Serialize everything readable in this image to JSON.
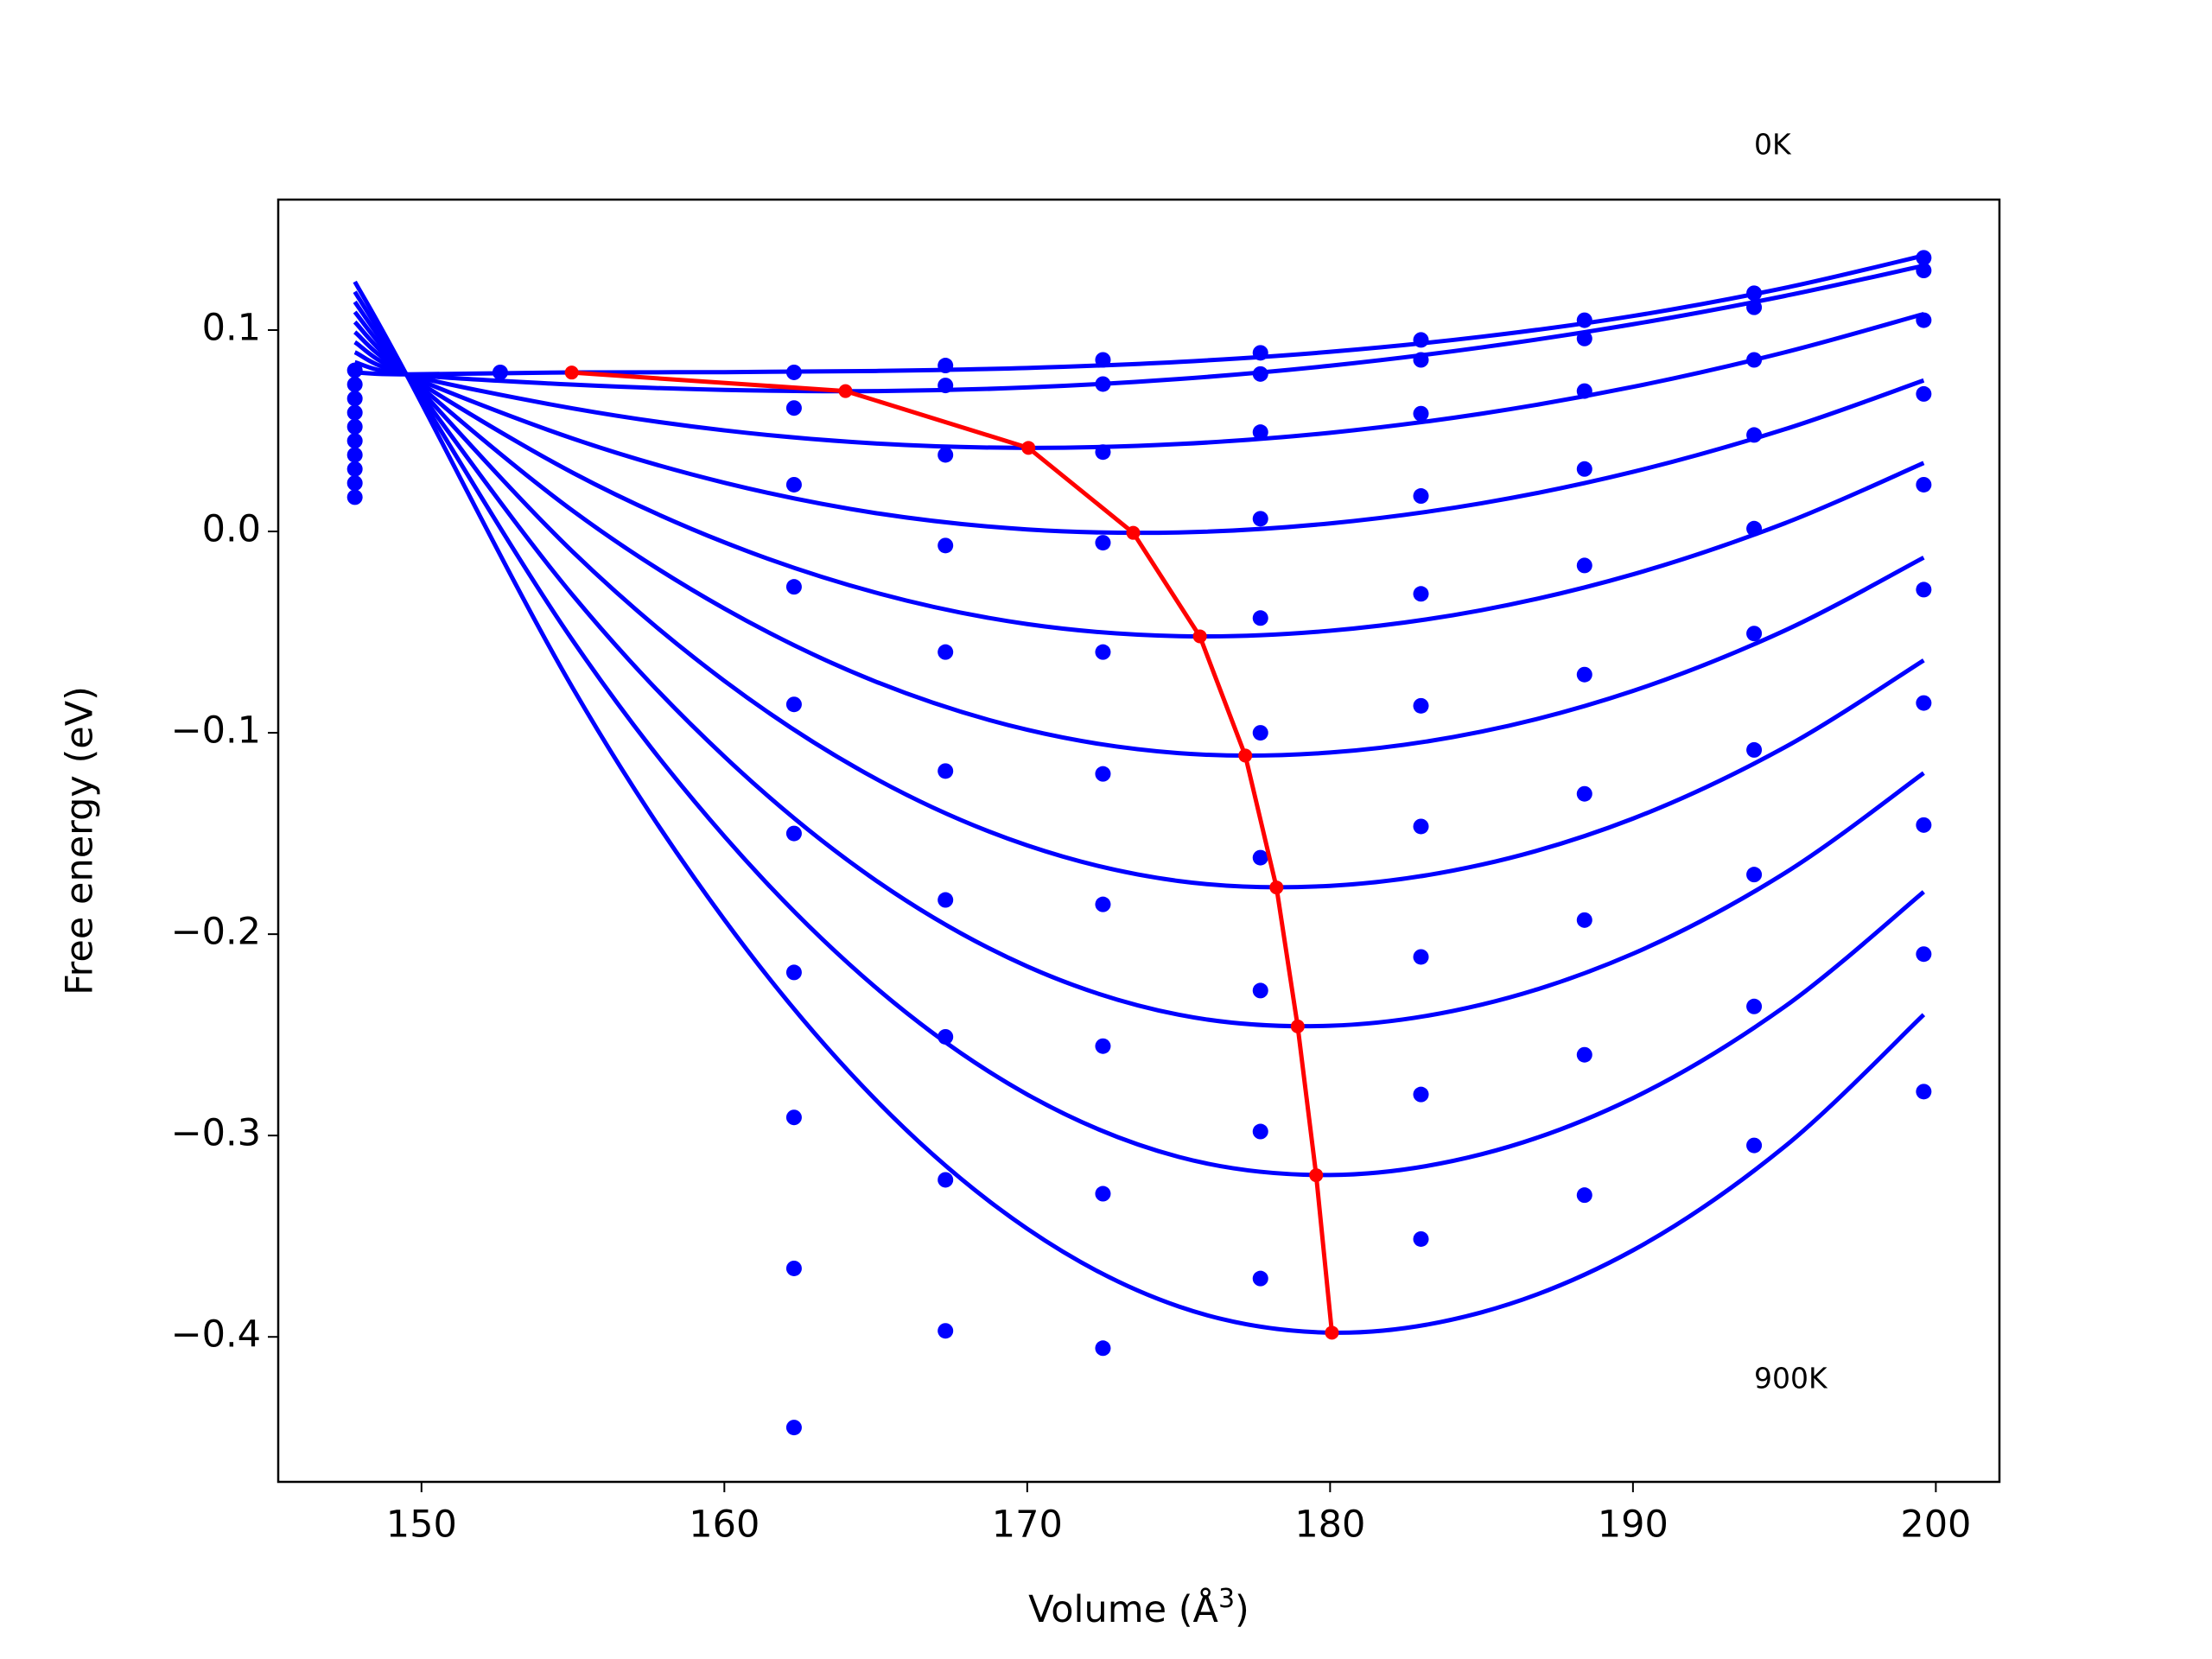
{
  "chart_data": {
    "type": "line",
    "xlabel": {
      "text": "Volume (Å",
      "sup": "3",
      "end": ")"
    },
    "ylabel": "Free energy (eV)",
    "annotations": [
      "0K",
      "900K"
    ],
    "xlim": [
      145.27,
      202.1
    ],
    "ylim": [
      -0.472,
      0.1648
    ],
    "xticks": [
      150,
      160,
      170,
      180,
      190,
      200
    ],
    "yticks": [
      {
        "value": -0.4,
        "label": "−0.4"
      },
      {
        "value": -0.3,
        "label": "−0.3"
      },
      {
        "value": -0.2,
        "label": "−0.2"
      },
      {
        "value": -0.1,
        "label": "−0.1"
      },
      {
        "value": 0,
        "label": "0.0"
      },
      0.1
    ],
    "x": [
      147.8,
      149.5,
      155,
      160,
      165,
      170,
      175,
      180,
      185,
      190,
      195,
      199.6
    ],
    "series": [
      {
        "color": "#0000ff",
        "values": [
          0.079,
          0.078,
          0.079,
          0.0791,
          0.0797,
          0.0812,
          0.0842,
          0.0892,
          0.0967,
          0.107,
          0.1209,
          0.137
        ]
      },
      {
        "color": "#0000ff",
        "values": [
          0.084,
          0.078,
          0.0729,
          0.0703,
          0.0697,
          0.0715,
          0.0757,
          0.0823,
          0.0914,
          0.1029,
          0.1169,
          0.132
        ]
      },
      {
        "color": "#0000ff",
        "values": [
          0.089,
          0.078,
          0.0611,
          0.0502,
          0.0437,
          0.0415,
          0.0434,
          0.049,
          0.0585,
          0.0718,
          0.0889,
          0.108
        ]
      },
      {
        "color": "#0000ff",
        "values": [
          0.094,
          0.078,
          0.0461,
          0.0242,
          0.0091,
          0.001,
          -0.0005,
          0.004,
          0.014,
          0.0296,
          0.0507,
          0.075
        ]
      },
      {
        "color": "#0000ff",
        "values": [
          0.099,
          0.078,
          0.0291,
          -0.0054,
          -0.0304,
          -0.046,
          -0.052,
          -0.0493,
          -0.0391,
          -0.0213,
          0.004,
          0.034
        ]
      },
      {
        "color": "#0000ff",
        "values": [
          0.104,
          0.078,
          0.0102,
          -0.0383,
          -0.0746,
          -0.0985,
          -0.1101,
          -0.1098,
          -0.0994,
          -0.0792,
          -0.0493,
          -0.013
        ]
      },
      {
        "color": "#0000ff",
        "values": [
          0.109,
          0.078,
          -0.0102,
          -0.0742,
          -0.1228,
          -0.1559,
          -0.1736,
          -0.176,
          -0.1655,
          -0.1426,
          -0.1073,
          -0.064
        ]
      },
      {
        "color": "#0000ff",
        "values": [
          0.114,
          0.078,
          -0.0318,
          -0.1118,
          -0.1733,
          -0.216,
          -0.24,
          -0.2455,
          -0.235,
          -0.2097,
          -0.1698,
          -0.12
        ]
      },
      {
        "color": "#0000ff",
        "values": [
          0.119,
          0.078,
          -0.0543,
          -0.1514,
          -0.2265,
          -0.2796,
          -0.3106,
          -0.3196,
          -0.3093,
          -0.2814,
          -0.2361,
          -0.179
        ]
      },
      {
        "color": "#0000ff",
        "values": [
          0.124,
          0.078,
          -0.0779,
          -0.1928,
          -0.2823,
          -0.3463,
          -0.3849,
          -0.3979,
          -0.3878,
          -0.357,
          -0.3056,
          -0.24
        ]
      }
    ],
    "minima": {
      "color": "#ff0000",
      "x": [
        154.96,
        164.0,
        170.04,
        173.5,
        175.7,
        177.2,
        178.23,
        178.93,
        179.54,
        180.06
      ],
      "values": [
        0.0789,
        0.0697,
        0.0415,
        -0.0007,
        -0.0521,
        -0.1113,
        -0.1768,
        -0.2458,
        -0.3197,
        -0.3979
      ]
    },
    "points": {
      "color": "#0000ff",
      "x": [
        147.8,
        147.8,
        147.8,
        147.8,
        147.8,
        147.8,
        147.8,
        147.8,
        147.8,
        147.8,
        152.6,
        162.3,
        162.3,
        162.3,
        162.3,
        162.3,
        162.3,
        162.3,
        162.3,
        162.3,
        162.3,
        167.3,
        167.3,
        167.3,
        167.3,
        167.3,
        167.3,
        167.3,
        167.3,
        167.3,
        167.3,
        172.5,
        172.5,
        172.5,
        172.5,
        172.5,
        172.5,
        172.5,
        172.5,
        172.5,
        172.5,
        177.7,
        177.7,
        177.7,
        177.7,
        177.7,
        177.7,
        177.7,
        177.7,
        177.7,
        177.7,
        183,
        183,
        183,
        183,
        183,
        183,
        183,
        183,
        183,
        183,
        188.4,
        188.4,
        188.4,
        188.4,
        188.4,
        188.4,
        188.4,
        188.4,
        188.4,
        188.4,
        194,
        194,
        194,
        194,
        194,
        194,
        194,
        194,
        194,
        194,
        199.6,
        199.6,
        199.6,
        199.6,
        199.6,
        199.6,
        199.6,
        199.6,
        199.6,
        199.6
      ],
      "y": [
        0.08,
        0.073,
        0.066,
        0.059,
        0.052,
        0.045,
        0.038,
        0.031,
        0.024,
        0.017,
        0.079,
        0.079,
        0.0613,
        0.0232,
        -0.0275,
        -0.0859,
        -0.15,
        -0.219,
        -0.291,
        -0.366,
        -0.445,
        0.0824,
        0.0725,
        0.038,
        -0.007,
        -0.0599,
        -0.119,
        -0.183,
        -0.251,
        -0.322,
        -0.397,
        0.0852,
        0.0732,
        0.0394,
        -0.0056,
        -0.0599,
        -0.1204,
        -0.1852,
        -0.2556,
        -0.3289,
        -0.4056,
        0.0887,
        0.0782,
        0.0493,
        0.0063,
        -0.043,
        -0.1,
        -0.162,
        -0.228,
        -0.298,
        -0.371,
        0.0951,
        0.0852,
        0.0585,
        0.0176,
        -0.031,
        -0.0866,
        -0.1465,
        -0.2113,
        -0.2796,
        -0.3514,
        0.1049,
        0.0958,
        0.0697,
        0.031,
        -0.0169,
        -0.0711,
        -0.1303,
        -0.193,
        -0.2599,
        -0.3296,
        0.1183,
        0.1113,
        0.0852,
        0.0479,
        0.0014,
        -0.0507,
        -0.1085,
        -0.1704,
        -0.2359,
        -0.3049,
        0.1359,
        0.1296,
        0.1049,
        0.0683,
        0.0232,
        -0.0289,
        -0.0852,
        -0.1458,
        -0.2099,
        -0.2782
      ]
    }
  }
}
